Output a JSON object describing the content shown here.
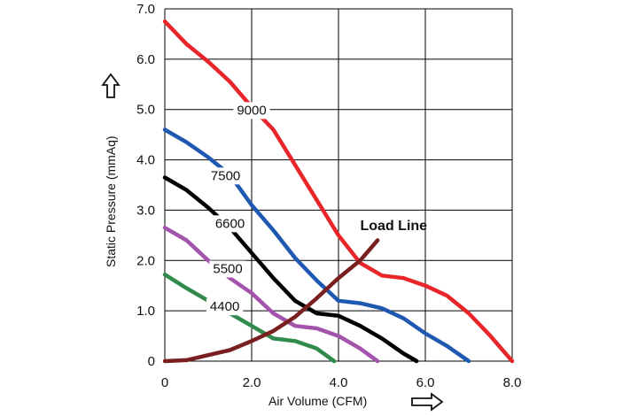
{
  "chart_data": {
    "type": "line",
    "xlabel": "Air Volume (CFM)",
    "ylabel": "Static Pressure (mmAq)",
    "xlim": [
      0,
      8
    ],
    "ylim": [
      0,
      7
    ],
    "grid": true,
    "x_ticks": [
      "0",
      "2.0",
      "4.0",
      "6.0",
      "8.0"
    ],
    "y_ticks": [
      "0",
      "1.0",
      "2.0",
      "3.0",
      "4.0",
      "5.0",
      "6.0",
      "7.0"
    ],
    "series": [
      {
        "name": "9000",
        "color": "#e8262a",
        "label_at": [
          2.0,
          4.9
        ],
        "points": [
          [
            0,
            6.75
          ],
          [
            0.5,
            6.3
          ],
          [
            1.0,
            5.95
          ],
          [
            1.5,
            5.55
          ],
          [
            2.0,
            5.05
          ],
          [
            2.5,
            4.6
          ],
          [
            3.0,
            3.9
          ],
          [
            3.5,
            3.2
          ],
          [
            4.0,
            2.5
          ],
          [
            4.5,
            1.95
          ],
          [
            5.0,
            1.7
          ],
          [
            5.5,
            1.65
          ],
          [
            6.0,
            1.5
          ],
          [
            6.5,
            1.3
          ],
          [
            7.0,
            0.95
          ],
          [
            7.5,
            0.5
          ],
          [
            8.0,
            0
          ]
        ]
      },
      {
        "name": "7500",
        "color": "#1f58b0",
        "label_at": [
          1.4,
          3.6
        ],
        "points": [
          [
            0,
            4.6
          ],
          [
            0.5,
            4.35
          ],
          [
            1.0,
            4.05
          ],
          [
            1.5,
            3.7
          ],
          [
            2.0,
            3.1
          ],
          [
            2.5,
            2.6
          ],
          [
            3.0,
            2.05
          ],
          [
            3.5,
            1.6
          ],
          [
            4.0,
            1.2
          ],
          [
            4.5,
            1.15
          ],
          [
            5.0,
            1.05
          ],
          [
            5.5,
            0.85
          ],
          [
            6.0,
            0.55
          ],
          [
            6.5,
            0.3
          ],
          [
            7.0,
            0
          ]
        ]
      },
      {
        "name": "6600",
        "color": "#000000",
        "label_at": [
          1.5,
          2.65
        ],
        "points": [
          [
            0,
            3.65
          ],
          [
            0.5,
            3.4
          ],
          [
            1.0,
            3.05
          ],
          [
            1.5,
            2.65
          ],
          [
            2.0,
            2.15
          ],
          [
            2.5,
            1.65
          ],
          [
            3.0,
            1.2
          ],
          [
            3.5,
            0.95
          ],
          [
            4.0,
            0.9
          ],
          [
            4.5,
            0.7
          ],
          [
            5.0,
            0.45
          ],
          [
            5.5,
            0.15
          ],
          [
            5.8,
            0
          ]
        ]
      },
      {
        "name": "5500",
        "color": "#a453ac",
        "label_at": [
          1.45,
          1.75
        ],
        "points": [
          [
            0,
            2.65
          ],
          [
            0.5,
            2.4
          ],
          [
            1.0,
            2.0
          ],
          [
            1.5,
            1.65
          ],
          [
            2.0,
            1.35
          ],
          [
            2.5,
            0.95
          ],
          [
            3.0,
            0.7
          ],
          [
            3.5,
            0.65
          ],
          [
            4.0,
            0.5
          ],
          [
            4.5,
            0.25
          ],
          [
            4.9,
            0
          ]
        ]
      },
      {
        "name": "4400",
        "color": "#2f8a4b",
        "label_at": [
          1.38,
          1.0
        ],
        "points": [
          [
            0,
            1.72
          ],
          [
            0.5,
            1.45
          ],
          [
            1.0,
            1.2
          ],
          [
            1.5,
            0.95
          ],
          [
            2.0,
            0.7
          ],
          [
            2.5,
            0.45
          ],
          [
            3.0,
            0.4
          ],
          [
            3.5,
            0.25
          ],
          [
            3.9,
            0
          ]
        ]
      },
      {
        "name": "Load Line",
        "color": "#7a1f1f",
        "label_at": [
          4.5,
          2.6
        ],
        "points": [
          [
            0,
            0
          ],
          [
            0.5,
            0.02
          ],
          [
            1.0,
            0.12
          ],
          [
            1.5,
            0.22
          ],
          [
            2.0,
            0.4
          ],
          [
            2.5,
            0.6
          ],
          [
            3.0,
            0.88
          ],
          [
            3.5,
            1.25
          ],
          [
            4.0,
            1.65
          ],
          [
            4.5,
            2.0
          ],
          [
            4.9,
            2.4
          ]
        ]
      }
    ]
  }
}
